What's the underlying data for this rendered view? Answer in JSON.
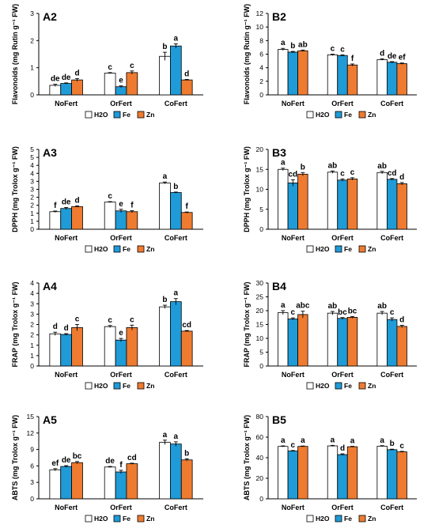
{
  "colors": {
    "H2O": "#ffffff",
    "Fe": "#1f9bd7",
    "Zn": "#ee7b30",
    "axis": "#000000",
    "letters": "#000000"
  },
  "chart_data": [
    {
      "panel": "A2",
      "type": "bar",
      "ylabel": "Flavonoids (mg Rutin g⁻¹ FW)",
      "ylim": [
        0,
        3
      ],
      "yticks": [
        "0",
        "1",
        "2",
        "3"
      ],
      "categories": [
        "NoFert",
        "OrFert",
        "CoFert"
      ],
      "legend": [
        "H2O",
        "Fe",
        "Zn"
      ],
      "series": [
        {
          "name": "H2O",
          "values": [
            0.35,
            0.8,
            1.42
          ],
          "errors": [
            0.04,
            0.02,
            0.15
          ],
          "letters": [
            "de",
            "c",
            "b"
          ]
        },
        {
          "name": "Fe",
          "values": [
            0.42,
            0.3,
            1.8
          ],
          "errors": [
            0.02,
            0.03,
            0.08
          ],
          "letters": [
            "de",
            "e",
            "a"
          ]
        },
        {
          "name": "Zn",
          "values": [
            0.55,
            0.82,
            0.55
          ],
          "errors": [
            0.05,
            0.06,
            0.02
          ],
          "letters": [
            "d",
            "c",
            "d"
          ]
        }
      ]
    },
    {
      "panel": "B2",
      "type": "bar",
      "ylabel": "Flavonoids (mg Rutin g⁻¹ FW)",
      "ylim": [
        0,
        12
      ],
      "yticks": [
        "0",
        "2",
        "4",
        "6",
        "8",
        "10",
        "12"
      ],
      "categories": [
        "NoFert",
        "OrFert",
        "CoFert"
      ],
      "legend": [
        "H2O",
        "Fe",
        "Zn"
      ],
      "series": [
        {
          "name": "H2O",
          "values": [
            6.7,
            5.9,
            5.2
          ],
          "errors": [
            0.15,
            0.1,
            0.1
          ],
          "letters": [
            "a",
            "c",
            "d"
          ]
        },
        {
          "name": "Fe",
          "values": [
            6.3,
            5.8,
            4.8
          ],
          "errors": [
            0.1,
            0.1,
            0.1
          ],
          "letters": [
            "b",
            "c",
            "de"
          ]
        },
        {
          "name": "Zn",
          "values": [
            6.5,
            4.4,
            4.6
          ],
          "errors": [
            0.1,
            0.15,
            0.1
          ],
          "letters": [
            "ab",
            "f",
            "ef"
          ]
        }
      ]
    },
    {
      "panel": "A3",
      "type": "bar",
      "ylabel": "DPPH (mg Trolox g⁻¹ FW)",
      "ylim": [
        0,
        5
      ],
      "yticks": [
        "0",
        "1",
        "1",
        "2",
        "2",
        "3",
        "3",
        "4",
        "4",
        "5",
        "5"
      ],
      "ystep": 0.5,
      "categories": [
        "NoFert",
        "OrFert",
        "CoFert"
      ],
      "legend": [
        "H2O",
        "Fe",
        "Zn"
      ],
      "series": [
        {
          "name": "H2O",
          "values": [
            1.1,
            1.7,
            2.9
          ],
          "errors": [
            0.04,
            0.03,
            0.06
          ],
          "letters": [
            "f",
            "c",
            "a"
          ]
        },
        {
          "name": "Fe",
          "values": [
            1.3,
            1.15,
            2.3
          ],
          "errors": [
            0.06,
            0.1,
            0.03
          ],
          "letters": [
            "de",
            "e",
            "b"
          ]
        },
        {
          "name": "Zn",
          "values": [
            1.42,
            1.1,
            1.05
          ],
          "errors": [
            0.04,
            0.06,
            0.03
          ],
          "letters": [
            "d",
            "f",
            "f"
          ]
        }
      ]
    },
    {
      "panel": "B3",
      "type": "bar",
      "ylabel": "DPPH (mg Trolox g⁻¹ FW)",
      "ylim": [
        0,
        20
      ],
      "yticks": [
        "0",
        "5",
        "10",
        "15",
        "20"
      ],
      "categories": [
        "NoFert",
        "OrFert",
        "CoFert"
      ],
      "legend": [
        "H2O",
        "Fe",
        "Zn"
      ],
      "series": [
        {
          "name": "H2O",
          "values": [
            15.0,
            14.3,
            14.2
          ],
          "errors": [
            0.3,
            0.3,
            0.3
          ],
          "letters": [
            "a",
            "ab",
            "ab"
          ]
        },
        {
          "name": "Fe",
          "values": [
            11.6,
            12.3,
            12.5
          ],
          "errors": [
            0.8,
            0.3,
            0.2
          ],
          "letters": [
            "cd",
            "c",
            "cd"
          ]
        },
        {
          "name": "Zn",
          "values": [
            13.8,
            12.6,
            11.4
          ],
          "errors": [
            0.4,
            0.3,
            0.3
          ],
          "letters": [
            "b",
            "c",
            "d"
          ]
        }
      ]
    },
    {
      "panel": "A4",
      "type": "bar",
      "ylabel": "FRAP (mg Trolox g⁻¹ FW)",
      "ylim": [
        0,
        4
      ],
      "yticks": [
        "0",
        "1",
        "1",
        "2",
        "2",
        "3",
        "3",
        "4",
        "4"
      ],
      "ystep": 0.5,
      "categories": [
        "NoFert",
        "OrFert",
        "CoFert"
      ],
      "legend": [
        "H2O",
        "Fe",
        "Zn"
      ],
      "series": [
        {
          "name": "H2O",
          "values": [
            1.55,
            1.9,
            2.85
          ],
          "errors": [
            0.08,
            0.05,
            0.08
          ],
          "letters": [
            "d",
            "c",
            "b"
          ]
        },
        {
          "name": "Fe",
          "values": [
            1.52,
            1.25,
            3.1
          ],
          "errors": [
            0.04,
            0.08,
            0.15
          ],
          "letters": [
            "d",
            "e",
            "a"
          ]
        },
        {
          "name": "Zn",
          "values": [
            1.85,
            1.85,
            1.68
          ],
          "errors": [
            0.15,
            0.12,
            0.03
          ],
          "letters": [
            "c",
            "c",
            "cd"
          ]
        }
      ]
    },
    {
      "panel": "B4",
      "type": "bar",
      "ylabel": "FRAP (mg Trolox g⁻¹ FW)",
      "ylim": [
        0,
        30
      ],
      "yticks": [
        "0",
        "5",
        "10",
        "15",
        "20",
        "25",
        "30"
      ],
      "categories": [
        "NoFert",
        "OrFert",
        "CoFert"
      ],
      "legend": [
        "H2O",
        "Fe",
        "Zn"
      ],
      "series": [
        {
          "name": "H2O",
          "values": [
            19.3,
            19.1,
            19.1
          ],
          "errors": [
            0.7,
            0.6,
            0.6
          ],
          "letters": [
            "a",
            "ab",
            "ab"
          ]
        },
        {
          "name": "Fe",
          "values": [
            17.0,
            17.2,
            16.8
          ],
          "errors": [
            0.4,
            0.3,
            0.6
          ],
          "letters": [
            "c",
            "bc",
            "c"
          ]
        },
        {
          "name": "Zn",
          "values": [
            18.6,
            17.6,
            14.3
          ],
          "errors": [
            1.2,
            0.3,
            0.4
          ],
          "letters": [
            "abc",
            "bc",
            "d"
          ]
        }
      ]
    },
    {
      "panel": "A5",
      "type": "bar",
      "ylabel": "ABTS (mg Trolox g⁻¹ FW)",
      "ylim": [
        0,
        15
      ],
      "yticks": [
        "0",
        "3",
        "6",
        "9",
        "12",
        "15"
      ],
      "categories": [
        "NoFert",
        "OrFert",
        "CoFert"
      ],
      "legend": [
        "H2O",
        "Fe",
        "Zn"
      ],
      "series": [
        {
          "name": "H2O",
          "values": [
            5.3,
            5.8,
            10.3
          ],
          "errors": [
            0.2,
            0.1,
            0.4
          ],
          "letters": [
            "ef",
            "de",
            "a"
          ]
        },
        {
          "name": "Fe",
          "values": [
            5.9,
            4.9,
            10.0
          ],
          "errors": [
            0.15,
            0.3,
            0.4
          ],
          "letters": [
            "de",
            "f",
            "a"
          ]
        },
        {
          "name": "Zn",
          "values": [
            6.6,
            6.4,
            7.1
          ],
          "errors": [
            0.2,
            0.1,
            0.2
          ],
          "letters": [
            "bc",
            "cd",
            "b"
          ]
        }
      ]
    },
    {
      "panel": "B5",
      "type": "bar",
      "ylabel": "ABTS (mg Trolox g⁻¹ FW)",
      "ylim": [
        0,
        80
      ],
      "yticks": [
        "0",
        "20",
        "40",
        "60",
        "80"
      ],
      "categories": [
        "NoFert",
        "OrFert",
        "CoFert"
      ],
      "legend": [
        "H2O",
        "Fe",
        "Zn"
      ],
      "series": [
        {
          "name": "H2O",
          "values": [
            51.0,
            51.5,
            51.2
          ],
          "errors": [
            0.5,
            0.5,
            0.5
          ],
          "letters": [
            "a",
            "a",
            "a"
          ]
        },
        {
          "name": "Fe",
          "values": [
            46.5,
            43.0,
            47.8
          ],
          "errors": [
            0.5,
            0.8,
            0.5
          ],
          "letters": [
            "c",
            "d",
            "b"
          ]
        },
        {
          "name": "Zn",
          "values": [
            51.0,
            50.7,
            45.7
          ],
          "errors": [
            0.4,
            0.4,
            0.5
          ],
          "letters": [
            "a",
            "a",
            "c"
          ]
        }
      ]
    }
  ]
}
